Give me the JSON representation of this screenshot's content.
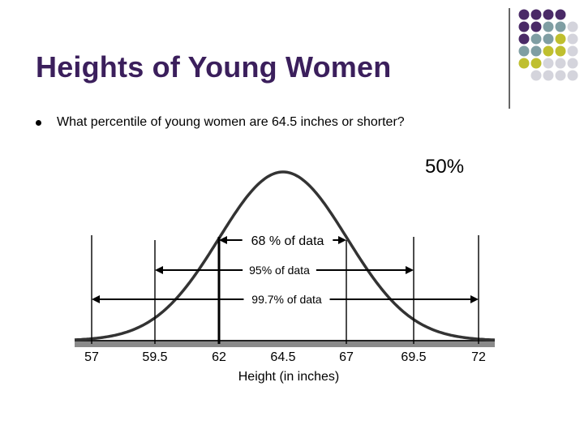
{
  "slide": {
    "title": "Heights of Young Women",
    "bullet": "What percentile of young women are 64.5 inches or shorter?",
    "answer": "50%"
  },
  "colors": {
    "title": "#3b1f5c",
    "dot_purple": "#4a2a67",
    "dot_teal": "#7f9ea3",
    "dot_lime": "#bfbf2f",
    "dot_gray": "#d4d4dc"
  },
  "diagram": {
    "x_label": "Height (in inches)",
    "ticks": [
      "57",
      "59.5",
      "62",
      "64.5",
      "67",
      "69.5",
      "72"
    ],
    "tick_values": [
      57,
      59.5,
      62,
      64.5,
      67,
      69.5,
      72
    ],
    "bands": [
      {
        "label": "68 % of data",
        "from": 62,
        "to": 67
      },
      {
        "label": "95% of data",
        "from": 59.5,
        "to": 69.5
      },
      {
        "label": "99.7% of data",
        "from": 57,
        "to": 72
      }
    ]
  }
}
